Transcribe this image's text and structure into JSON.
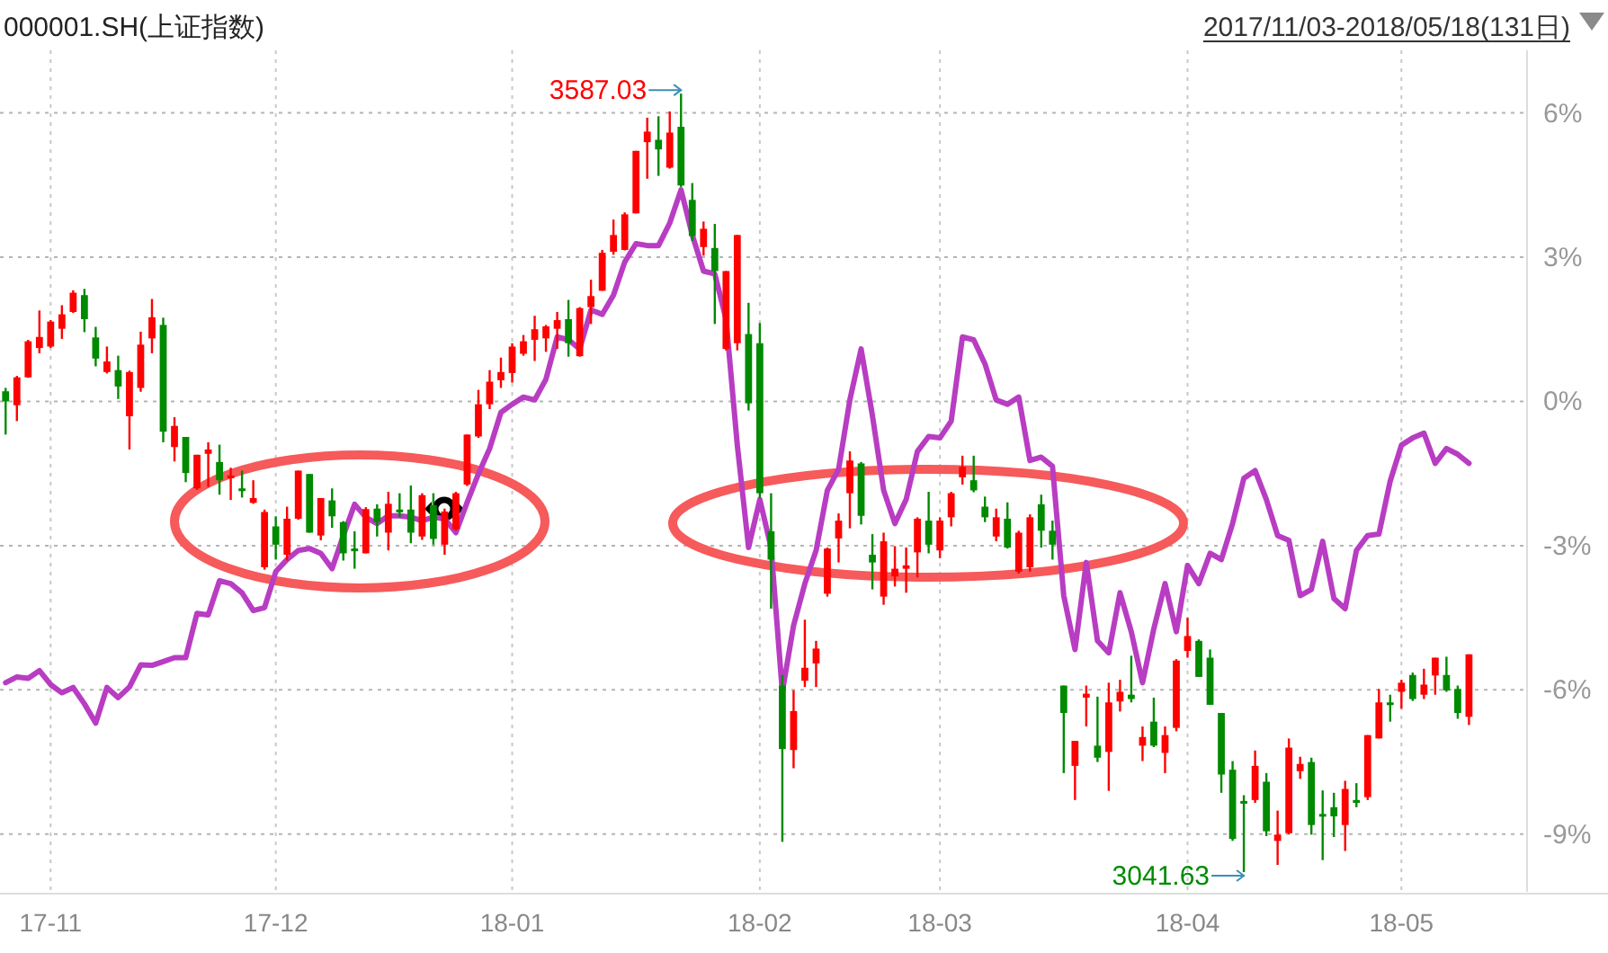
{
  "chart_data": {
    "type": "candlestick",
    "subtitle": "2017/11/03-2018/05/18(131日)",
    "legend": "top left",
    "grid": true,
    "annotations": [
      "3587.03",
      "3041.63"
    ],
    "ylim": [
      -10.2,
      7.3
    ],
    "yticks": [
      {
        "value": 6,
        "label": "6%"
      },
      {
        "value": 3,
        "label": "3%"
      },
      {
        "value": 0,
        "label": "0%"
      },
      {
        "value": -3,
        "label": "-3%"
      },
      {
        "value": -6,
        "label": "-6%"
      },
      {
        "value": -9,
        "label": "-9%"
      }
    ],
    "categories": [
      null,
      null,
      null,
      null,
      "17-11",
      null,
      null,
      null,
      null,
      null,
      null,
      null,
      null,
      null,
      null,
      null,
      null,
      null,
      null,
      null,
      null,
      null,
      null,
      null,
      "17-12",
      null,
      null,
      null,
      null,
      null,
      null,
      null,
      null,
      null,
      null,
      null,
      null,
      null,
      null,
      null,
      null,
      null,
      null,
      null,
      null,
      "18-01",
      null,
      null,
      null,
      null,
      null,
      null,
      null,
      null,
      null,
      null,
      null,
      null,
      null,
      null,
      null,
      null,
      null,
      null,
      null,
      null,
      null,
      "18-02",
      null,
      null,
      null,
      null,
      null,
      null,
      null,
      null,
      null,
      null,
      null,
      null,
      null,
      null,
      null,
      "18-03",
      null,
      null,
      null,
      null,
      null,
      null,
      null,
      null,
      null,
      null,
      null,
      null,
      null,
      null,
      null,
      null,
      null,
      null,
      null,
      null,
      null,
      "18-04",
      null,
      null,
      null,
      null,
      null,
      null,
      null,
      null,
      null,
      null,
      null,
      null,
      null,
      null,
      null,
      null,
      null,
      null,
      "18-05",
      null,
      null,
      null,
      null,
      null,
      null
    ],
    "series": [
      {
        "type": "candlestick",
        "name": "000001.SH(上证指数)",
        "colors": [
          "#008a00",
          "#ff0000",
          "#ff0000",
          "#ff0000",
          "#ff0000",
          "#ff0000",
          "#ff0000",
          "#008a00",
          "#008a00",
          "#ff0000",
          "#008a00",
          "#ff0000",
          "#ff0000",
          "#ff0000",
          "#008a00",
          "#ff0000",
          "#008a00",
          "#ff0000",
          "#ff0000",
          "#008a00",
          "#ff0000",
          "#008a00",
          "#ff0000",
          "#ff0000",
          "#008a00",
          "#ff0000",
          "#ff0000",
          "#008a00",
          "#ff0000",
          "#008a00",
          "#008a00",
          "#008a00",
          "#ff0000",
          "#008a00",
          "#ff0000",
          "#008a00",
          "#008a00",
          "#ff0000",
          "#008a00",
          "#ff0000",
          "#ff0000",
          "#ff0000",
          "#ff0000",
          "#ff0000",
          "#ff0000",
          "#ff0000",
          "#ff0000",
          "#ff0000",
          "#ff0000",
          "#ff0000",
          "#008a00",
          "#ff0000",
          "#ff0000",
          "#ff0000",
          "#ff0000",
          "#ff0000",
          "#ff0000",
          "#ff0000",
          "#008a00",
          "#ff0000",
          "#008a00",
          "#008a00",
          "#ff0000",
          "#008a00",
          "#ff0000",
          "#ff0000",
          "#008a00",
          "#008a00",
          "#008a00",
          "#008a00",
          "#ff0000",
          "#ff0000",
          "#ff0000",
          "#ff0000",
          "#ff0000",
          "#ff0000",
          "#008a00",
          "#008a00",
          "#ff0000",
          "#ff0000",
          "#ff0000",
          "#ff0000",
          "#008a00",
          "#ff0000",
          "#ff0000",
          "#ff0000",
          "#008a00",
          "#008a00",
          "#ff0000",
          "#008a00",
          "#ff0000",
          "#ff0000",
          "#008a00",
          "#008a00",
          "#008a00",
          "#ff0000",
          "#ff0000",
          "#008a00",
          "#ff0000",
          "#ff0000",
          "#008a00",
          "#ff0000",
          "#008a00",
          "#ff0000",
          "#ff0000",
          "#ff0000",
          "#008a00",
          "#008a00",
          "#008a00",
          "#008a00",
          "#008a00",
          "#ff0000",
          "#008a00",
          "#ff0000",
          "#ff0000",
          "#ff0000",
          "#008a00",
          "#008a00",
          "#008a00",
          "#ff0000",
          "#008a00",
          "#ff0000",
          "#ff0000",
          "#008a00",
          "#ff0000",
          "#008a00",
          "#ff0000",
          "#ff0000",
          "#008a00",
          "#008a00",
          "#ff0000"
        ],
        "ohlc": [
          [
            0.21,
            0.28,
            -0.69,
            0.0
          ],
          [
            -0.08,
            0.53,
            -0.41,
            0.5
          ],
          [
            0.5,
            1.28,
            0.49,
            1.25
          ],
          [
            1.11,
            1.89,
            1.0,
            1.34
          ],
          [
            1.14,
            1.69,
            1.11,
            1.66
          ],
          [
            1.51,
            2.0,
            1.3,
            1.81
          ],
          [
            1.86,
            2.31,
            1.84,
            2.26
          ],
          [
            2.21,
            2.34,
            1.44,
            1.71
          ],
          [
            1.33,
            1.55,
            0.73,
            0.89
          ],
          [
            0.61,
            1.14,
            0.58,
            0.83
          ],
          [
            0.65,
            0.95,
            0.05,
            0.31
          ],
          [
            -0.31,
            0.64,
            -1.0,
            0.61
          ],
          [
            0.28,
            1.45,
            0.2,
            1.18
          ],
          [
            1.31,
            2.13,
            1.0,
            1.75
          ],
          [
            1.59,
            1.74,
            -0.85,
            -0.63
          ],
          [
            -0.95,
            -0.33,
            -1.25,
            -0.51
          ],
          [
            -0.74,
            -0.74,
            -1.68,
            -1.49
          ],
          [
            -1.81,
            -1.11,
            -1.84,
            -1.11
          ],
          [
            -1.09,
            -0.85,
            -1.78,
            -1.0
          ],
          [
            -1.26,
            -0.9,
            -1.94,
            -1.64
          ],
          [
            -1.6,
            -1.38,
            -2.05,
            -1.54
          ],
          [
            -1.81,
            -1.44,
            -2.0,
            -1.85
          ],
          [
            -2.11,
            -1.64,
            -2.13,
            -2.01
          ],
          [
            -3.45,
            -2.25,
            -3.5,
            -2.3
          ],
          [
            -2.6,
            -2.39,
            -3.29,
            -2.98
          ],
          [
            -3.19,
            -2.19,
            -3.31,
            -2.44
          ],
          [
            -2.44,
            -1.44,
            -2.46,
            -1.44
          ],
          [
            -1.51,
            -1.51,
            -2.73,
            -2.73
          ],
          [
            -2.79,
            -2.01,
            -2.89,
            -2.01
          ],
          [
            -2.06,
            -1.81,
            -2.63,
            -2.39
          ],
          [
            -2.51,
            -2.49,
            -3.31,
            -3.16
          ],
          [
            -3.06,
            -2.7,
            -3.48,
            -3.09
          ],
          [
            -3.16,
            -2.2,
            -3.16,
            -2.24
          ],
          [
            -2.23,
            -2.14,
            -2.81,
            -2.51
          ],
          [
            -2.73,
            -1.88,
            -3.1,
            -2.13
          ],
          [
            -2.25,
            -1.91,
            -2.41,
            -2.29
          ],
          [
            -2.25,
            -1.75,
            -2.95,
            -2.73
          ],
          [
            -2.81,
            -1.91,
            -2.88,
            -1.95
          ],
          [
            -2.16,
            -1.91,
            -2.98,
            -2.86
          ],
          [
            -2.98,
            -2.23,
            -3.19,
            -2.29
          ],
          [
            -2.66,
            -1.88,
            -2.69,
            -1.91
          ],
          [
            -1.73,
            -0.69,
            -1.76,
            -0.69
          ],
          [
            -0.73,
            0.24,
            -0.76,
            -0.06
          ],
          [
            -0.06,
            0.65,
            -0.16,
            0.41
          ],
          [
            0.44,
            0.91,
            0.28,
            0.61
          ],
          [
            0.59,
            1.21,
            0.39,
            1.14
          ],
          [
            0.99,
            1.38,
            0.95,
            1.25
          ],
          [
            1.28,
            1.78,
            0.84,
            1.5
          ],
          [
            1.31,
            1.59,
            1.03,
            1.56
          ],
          [
            1.51,
            1.86,
            1.09,
            1.69
          ],
          [
            1.71,
            2.11,
            0.93,
            1.21
          ],
          [
            0.94,
            1.96,
            0.93,
            1.94
          ],
          [
            1.96,
            2.53,
            1.61,
            2.19
          ],
          [
            2.3,
            3.15,
            2.3,
            3.09
          ],
          [
            3.11,
            3.78,
            3.05,
            3.46
          ],
          [
            3.15,
            3.93,
            3.14,
            3.89
          ],
          [
            3.91,
            5.21,
            3.91,
            5.21
          ],
          [
            5.39,
            5.9,
            4.63,
            5.61
          ],
          [
            5.44,
            5.93,
            4.69,
            5.24
          ],
          [
            4.86,
            6.03,
            4.84,
            5.59
          ],
          [
            5.71,
            6.4,
            4.46,
            4.49
          ],
          [
            4.19,
            4.54,
            3.34,
            3.44
          ],
          [
            3.21,
            3.74,
            3.03,
            3.59
          ],
          [
            3.19,
            3.69,
            1.61,
            2.71
          ],
          [
            1.09,
            2.71,
            1.06,
            2.71
          ],
          [
            1.21,
            3.46,
            1.06,
            3.46
          ],
          [
            1.4,
            2.05,
            -0.19,
            -0.04
          ],
          [
            1.21,
            1.63,
            -2.01,
            -1.91
          ],
          [
            -2.7,
            -1.91,
            -4.31,
            -3.29
          ],
          [
            -5.91,
            -5.69,
            -9.16,
            -7.23
          ],
          [
            -7.25,
            -6.01,
            -7.63,
            -6.44
          ],
          [
            -5.81,
            -4.54,
            -5.94,
            -5.54
          ],
          [
            -5.45,
            -4.98,
            -5.94,
            -5.14
          ],
          [
            -4.0,
            -3.04,
            -4.06,
            -3.06
          ],
          [
            -2.85,
            -2.33,
            -3.35,
            -2.48
          ],
          [
            -1.91,
            -1.04,
            -2.64,
            -1.23
          ],
          [
            -1.29,
            -1.26,
            -2.56,
            -2.38
          ],
          [
            -3.19,
            -2.76,
            -3.91,
            -3.35
          ],
          [
            -4.06,
            -2.73,
            -4.23,
            -2.91
          ],
          [
            -3.64,
            -3.01,
            -3.85,
            -3.48
          ],
          [
            -3.48,
            -3.04,
            -3.98,
            -3.41
          ],
          [
            -3.14,
            -2.41,
            -3.66,
            -2.44
          ],
          [
            -2.48,
            -1.88,
            -3.16,
            -2.98
          ],
          [
            -3.1,
            -2.41,
            -3.26,
            -2.48
          ],
          [
            -2.41,
            -1.88,
            -2.6,
            -1.91
          ],
          [
            -1.58,
            -1.13,
            -1.73,
            -1.36
          ],
          [
            -1.64,
            -1.13,
            -1.89,
            -1.85
          ],
          [
            -2.19,
            -1.98,
            -2.51,
            -2.41
          ],
          [
            -2.81,
            -2.23,
            -2.91,
            -2.41
          ],
          [
            -2.44,
            -2.1,
            -3.06,
            -3.04
          ],
          [
            -3.54,
            -2.69,
            -3.58,
            -2.73
          ],
          [
            -3.45,
            -2.35,
            -3.54,
            -2.41
          ],
          [
            -2.14,
            -1.94,
            -3.04,
            -2.69
          ],
          [
            -2.69,
            -2.48,
            -3.29,
            -2.98
          ],
          [
            -5.91,
            -5.91,
            -7.73,
            -6.48
          ],
          [
            -7.58,
            -7.06,
            -8.29,
            -7.06
          ],
          [
            -6.16,
            -5.91,
            -6.76,
            -6.08
          ],
          [
            -7.16,
            -6.14,
            -7.5,
            -7.41
          ],
          [
            -7.29,
            -5.85,
            -8.1,
            -6.26
          ],
          [
            -6.24,
            -5.79,
            -6.45,
            -6.04
          ],
          [
            -6.1,
            -5.29,
            -6.26,
            -6.19
          ],
          [
            -7.16,
            -6.76,
            -7.48,
            -6.98
          ],
          [
            -6.66,
            -6.16,
            -7.19,
            -7.16
          ],
          [
            -7.31,
            -6.76,
            -7.73,
            -6.94
          ],
          [
            -6.79,
            -5.36,
            -6.86,
            -5.39
          ],
          [
            -5.19,
            -4.5,
            -5.33,
            -4.88
          ],
          [
            -4.98,
            -4.95,
            -5.73,
            -5.73
          ],
          [
            -5.33,
            -5.16,
            -6.31,
            -6.31
          ],
          [
            -6.48,
            -6.48,
            -8.14,
            -7.76
          ],
          [
            -7.66,
            -7.48,
            -9.14,
            -9.1
          ],
          [
            -8.31,
            -8.19,
            -9.79,
            -8.34
          ],
          [
            -8.29,
            -7.26,
            -8.35,
            -7.58
          ],
          [
            -7.91,
            -7.73,
            -9.04,
            -8.94
          ],
          [
            -9.14,
            -8.51,
            -9.64,
            -9.01
          ],
          [
            -8.98,
            -7.01,
            -9.0,
            -7.2
          ],
          [
            -7.69,
            -7.39,
            -7.85,
            -7.54
          ],
          [
            -7.5,
            -7.41,
            -9.01,
            -8.81
          ],
          [
            -8.58,
            -8.09,
            -9.54,
            -8.6
          ],
          [
            -8.44,
            -8.14,
            -9.06,
            -8.63
          ],
          [
            -8.81,
            -7.89,
            -9.35,
            -8.06
          ],
          [
            -8.29,
            -7.94,
            -8.44,
            -8.35
          ],
          [
            -8.23,
            -6.94,
            -8.29,
            -6.94
          ],
          [
            -7.01,
            -5.98,
            -7.01,
            -6.26
          ],
          [
            -6.26,
            -6.1,
            -6.66,
            -6.3
          ],
          [
            -6.04,
            -5.79,
            -6.39,
            -5.85
          ],
          [
            -5.69,
            -5.64,
            -6.23,
            -6.19
          ],
          [
            -6.1,
            -5.56,
            -6.19,
            -5.89
          ],
          [
            -5.7,
            -5.33,
            -6.1,
            -5.33
          ],
          [
            -5.69,
            -5.31,
            -6.04,
            -6.01
          ],
          [
            -5.98,
            -5.91,
            -6.6,
            -6.48
          ],
          [
            -6.56,
            -5.26,
            -6.73,
            -5.26
          ]
        ]
      },
      {
        "type": "line",
        "color": "#b83dc2",
        "values": [
          -5.85,
          -5.73,
          -5.76,
          -5.6,
          -5.89,
          -6.06,
          -5.95,
          -6.29,
          -6.69,
          -5.95,
          -6.16,
          -5.94,
          -5.48,
          -5.49,
          -5.41,
          -5.33,
          -5.33,
          -4.41,
          -4.44,
          -3.73,
          -3.79,
          -3.98,
          -4.35,
          -4.29,
          -3.54,
          -3.29,
          -3.1,
          -3.06,
          -3.16,
          -3.48,
          -2.79,
          -2.14,
          -2.41,
          -2.54,
          -2.38,
          -2.38,
          -2.41,
          -2.48,
          -2.41,
          -2.44,
          -2.73,
          -2.1,
          -1.51,
          -0.98,
          -0.23,
          -0.06,
          0.09,
          0.03,
          0.46,
          1.34,
          1.28,
          1.09,
          1.9,
          1.81,
          2.21,
          2.9,
          3.28,
          3.24,
          3.24,
          3.71,
          4.4,
          3.46,
          2.71,
          2.65,
          1.71,
          -0.91,
          -3.04,
          -2.04,
          -3.04,
          -6.04,
          -4.66,
          -3.79,
          -3.1,
          -1.85,
          -1.41,
          0.03,
          1.09,
          -0.29,
          -1.85,
          -2.54,
          -2.04,
          -1.04,
          -0.73,
          -0.76,
          -0.41,
          1.34,
          1.28,
          0.78,
          0.03,
          -0.06,
          0.09,
          -1.23,
          -1.16,
          -1.35,
          -4.04,
          -5.16,
          -3.35,
          -4.98,
          -5.23,
          -3.98,
          -4.79,
          -5.85,
          -4.73,
          -3.79,
          -4.79,
          -3.41,
          -3.79,
          -3.16,
          -3.29,
          -2.54,
          -1.6,
          -1.44,
          -2.04,
          -2.79,
          -2.89,
          -4.04,
          -3.91,
          -2.91,
          -4.1,
          -4.31,
          -3.1,
          -2.79,
          -2.76,
          -1.66,
          -0.91,
          -0.76,
          -0.66,
          -1.29,
          -0.98,
          -1.1,
          -1.29
        ]
      }
    ]
  }
}
